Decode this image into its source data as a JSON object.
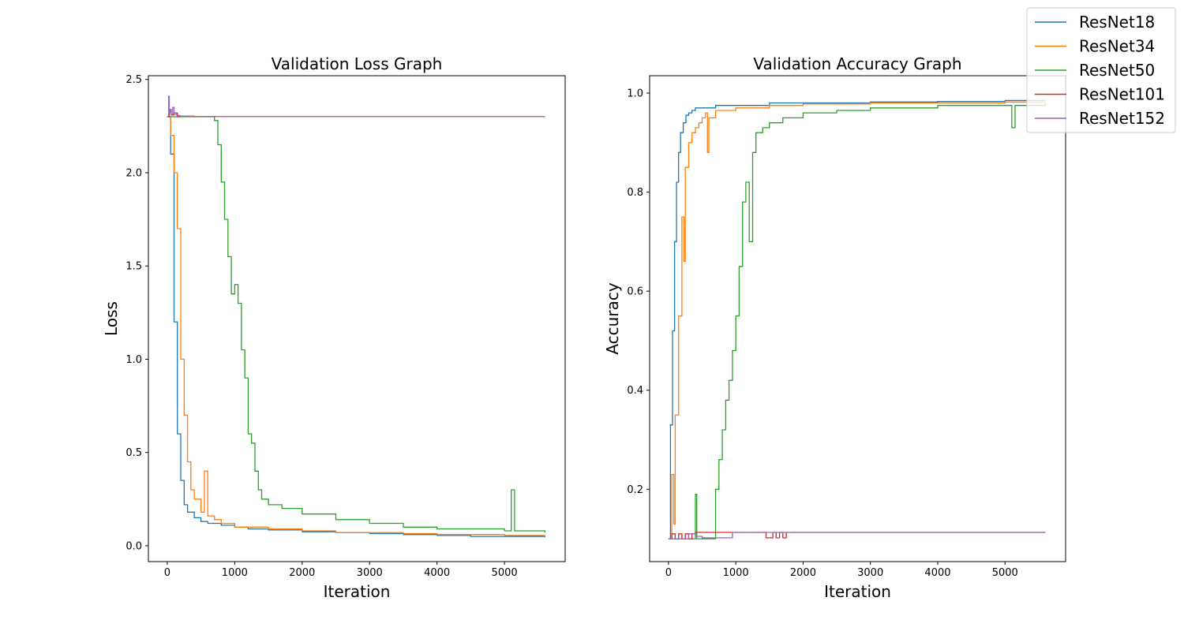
{
  "chart_data": [
    {
      "type": "line",
      "title": "Validation Loss Graph",
      "xlabel": "Iteration",
      "ylabel": "Loss",
      "xlim": [
        -280,
        5900
      ],
      "ylim": [
        -0.085,
        2.52
      ],
      "xticks": [
        0,
        1000,
        2000,
        3000,
        4000,
        5000
      ],
      "yticks": [
        0.0,
        0.5,
        1.0,
        1.5,
        2.0,
        2.5
      ],
      "ytick_labels": [
        "0.0",
        "0.5",
        "1.0",
        "1.5",
        "2.0",
        "2.5"
      ],
      "grid": false,
      "series": [
        {
          "name": "ResNet18",
          "color": "#1f77b4",
          "x": [
            0,
            50,
            100,
            150,
            200,
            250,
            300,
            400,
            500,
            600,
            800,
            1000,
            1200,
            1500,
            2000,
            2500,
            3000,
            3500,
            4000,
            4500,
            5000,
            5600
          ],
          "y": [
            2.3,
            2.1,
            1.2,
            0.6,
            0.35,
            0.22,
            0.18,
            0.15,
            0.13,
            0.12,
            0.11,
            0.1,
            0.09,
            0.085,
            0.075,
            0.07,
            0.065,
            0.06,
            0.055,
            0.05,
            0.05,
            0.045
          ]
        },
        {
          "name": "ResNet34",
          "color": "#ff7f0e",
          "x": [
            0,
            50,
            100,
            150,
            200,
            250,
            300,
            350,
            400,
            500,
            550,
            600,
            700,
            800,
            1000,
            1500,
            2000,
            2500,
            3000,
            3500,
            4000,
            4500,
            5000,
            5600
          ],
          "y": [
            2.3,
            2.2,
            2.0,
            1.7,
            1.0,
            0.7,
            0.45,
            0.3,
            0.25,
            0.18,
            0.4,
            0.16,
            0.14,
            0.12,
            0.1,
            0.09,
            0.08,
            0.07,
            0.07,
            0.065,
            0.06,
            0.06,
            0.055,
            0.05
          ]
        },
        {
          "name": "ResNet50",
          "color": "#2ca02c",
          "x": [
            0,
            300,
            600,
            700,
            750,
            800,
            850,
            900,
            950,
            1000,
            1050,
            1100,
            1150,
            1200,
            1250,
            1300,
            1350,
            1400,
            1500,
            1700,
            2000,
            2500,
            3000,
            3500,
            4000,
            4500,
            5000,
            5100,
            5150,
            5600
          ],
          "y": [
            2.3,
            2.3,
            2.3,
            2.28,
            2.15,
            1.95,
            1.75,
            1.55,
            1.35,
            1.4,
            1.3,
            1.05,
            0.9,
            0.6,
            0.55,
            0.4,
            0.3,
            0.25,
            0.22,
            0.2,
            0.17,
            0.14,
            0.12,
            0.1,
            0.09,
            0.09,
            0.08,
            0.3,
            0.08,
            0.07
          ]
        },
        {
          "name": "ResNet101",
          "color": "#d62728",
          "x": [
            0,
            30,
            60,
            100,
            150,
            200,
            400,
            800,
            1500,
            3000,
            4500,
            5600
          ],
          "y": [
            2.3,
            2.33,
            2.31,
            2.32,
            2.3,
            2.303,
            2.302,
            2.302,
            2.302,
            2.302,
            2.302,
            2.302
          ]
        },
        {
          "name": "ResNet152",
          "color": "#9467bd",
          "x": [
            0,
            20,
            30,
            40,
            60,
            80,
            100,
            130,
            160,
            200,
            300,
            500,
            1000,
            2000,
            3000,
            4000,
            5000,
            5600
          ],
          "y": [
            2.3,
            2.41,
            2.32,
            2.34,
            2.31,
            2.35,
            2.32,
            2.31,
            2.305,
            2.303,
            2.302,
            2.302,
            2.302,
            2.302,
            2.302,
            2.302,
            2.302,
            2.302
          ]
        }
      ]
    },
    {
      "type": "line",
      "title": "Validation Accuracy Graph",
      "xlabel": "Iteration",
      "ylabel": "Accuracy",
      "xlim": [
        -280,
        5900
      ],
      "ylim": [
        0.054,
        1.035
      ],
      "xticks": [
        0,
        1000,
        2000,
        3000,
        4000,
        5000
      ],
      "yticks": [
        0.2,
        0.4,
        0.6,
        0.8,
        1.0
      ],
      "ytick_labels": [
        "0.2",
        "0.4",
        "0.6",
        "0.8",
        "1.0"
      ],
      "grid": false,
      "series": [
        {
          "name": "ResNet18",
          "color": "#1f77b4",
          "x": [
            0,
            30,
            60,
            90,
            120,
            150,
            180,
            220,
            260,
            300,
            350,
            400,
            500,
            700,
            1000,
            1500,
            2000,
            3000,
            4000,
            5000,
            5600
          ],
          "y": [
            0.1,
            0.33,
            0.52,
            0.7,
            0.82,
            0.88,
            0.92,
            0.94,
            0.955,
            0.96,
            0.965,
            0.97,
            0.97,
            0.975,
            0.975,
            0.98,
            0.98,
            0.982,
            0.983,
            0.985,
            0.985
          ]
        },
        {
          "name": "ResNet34",
          "color": "#ff7f0e",
          "x": [
            0,
            50,
            80,
            100,
            150,
            200,
            230,
            250,
            300,
            350,
            400,
            450,
            500,
            550,
            580,
            600,
            700,
            1000,
            1500,
            2000,
            3000,
            4000,
            5000,
            5600
          ],
          "y": [
            0.1,
            0.23,
            0.13,
            0.35,
            0.55,
            0.75,
            0.66,
            0.85,
            0.9,
            0.92,
            0.93,
            0.94,
            0.95,
            0.96,
            0.88,
            0.95,
            0.965,
            0.97,
            0.975,
            0.978,
            0.98,
            0.98,
            0.982,
            0.982
          ]
        },
        {
          "name": "ResNet50",
          "color": "#2ca02c",
          "x": [
            0,
            300,
            380,
            400,
            420,
            600,
            700,
            750,
            800,
            850,
            900,
            950,
            1000,
            1050,
            1100,
            1150,
            1200,
            1250,
            1300,
            1400,
            1500,
            1700,
            2000,
            2500,
            3000,
            4000,
            5000,
            5100,
            5150,
            5600
          ],
          "y": [
            0.1,
            0.1,
            0.1,
            0.19,
            0.1,
            0.1,
            0.2,
            0.26,
            0.32,
            0.38,
            0.42,
            0.48,
            0.55,
            0.65,
            0.78,
            0.82,
            0.7,
            0.88,
            0.92,
            0.93,
            0.94,
            0.95,
            0.96,
            0.965,
            0.97,
            0.975,
            0.975,
            0.93,
            0.975,
            0.98
          ]
        },
        {
          "name": "ResNet101",
          "color": "#d62728",
          "x": [
            0,
            50,
            100,
            150,
            200,
            250,
            300,
            350,
            400,
            500,
            1000,
            1400,
            1450,
            1550,
            1600,
            1650,
            1700,
            1750,
            1800,
            2000,
            3000,
            4000,
            5000,
            5600
          ],
          "y": [
            0.1,
            0.11,
            0.1,
            0.11,
            0.1,
            0.11,
            0.1,
            0.11,
            0.113,
            0.113,
            0.113,
            0.113,
            0.102,
            0.113,
            0.102,
            0.113,
            0.102,
            0.113,
            0.113,
            0.113,
            0.113,
            0.113,
            0.113,
            0.113
          ]
        },
        {
          "name": "ResNet152",
          "color": "#9467bd",
          "x": [
            0,
            100,
            200,
            300,
            400,
            500,
            700,
            900,
            950,
            1000,
            1500,
            2000,
            3000,
            4000,
            5000,
            5600
          ],
          "y": [
            0.1,
            0.1,
            0.1,
            0.11,
            0.105,
            0.102,
            0.102,
            0.102,
            0.113,
            0.113,
            0.113,
            0.113,
            0.113,
            0.113,
            0.113,
            0.113
          ]
        }
      ]
    }
  ],
  "legend": {
    "position": "top-right",
    "entries": [
      {
        "label": "ResNet18",
        "color": "#1f77b4"
      },
      {
        "label": "ResNet34",
        "color": "#ff7f0e"
      },
      {
        "label": "ResNet50",
        "color": "#2ca02c"
      },
      {
        "label": "ResNet101",
        "color": "#d62728"
      },
      {
        "label": "ResNet152",
        "color": "#9467bd"
      }
    ]
  }
}
